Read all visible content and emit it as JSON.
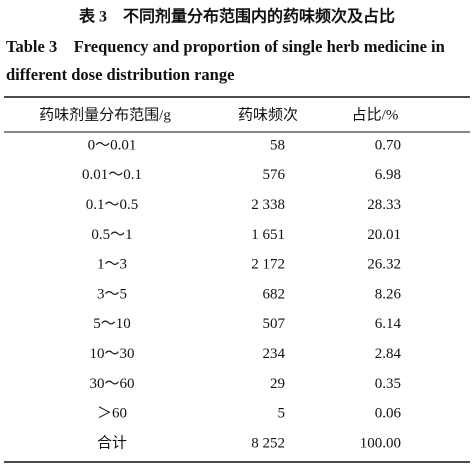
{
  "header": {
    "title_cn": "表 3　不同剂量分布范围内的药味频次及占比",
    "title_en_1": "Table 3　Frequency and proportion of single herb medicine in",
    "title_en_2": "different dose distribution range"
  },
  "table": {
    "columns": [
      "药味剂量分布范围/g",
      "药味频次",
      "占比/%"
    ],
    "rows": [
      [
        "0～0.01",
        "58",
        "0.70"
      ],
      [
        "0.01～0.1",
        "576",
        "6.98"
      ],
      [
        "0.1～0.5",
        "2 338",
        "28.33"
      ],
      [
        "0.5～1",
        "1 651",
        "20.01"
      ],
      [
        "1～3",
        "2 172",
        "26.32"
      ],
      [
        "3～5",
        "682",
        "8.26"
      ],
      [
        "5～10",
        "507",
        "6.14"
      ],
      [
        "10～30",
        "234",
        "2.84"
      ],
      [
        "30～60",
        "29",
        "0.35"
      ],
      [
        "＞60",
        "5",
        "0.06"
      ],
      [
        "合计",
        "8 252",
        "100.00"
      ]
    ]
  }
}
